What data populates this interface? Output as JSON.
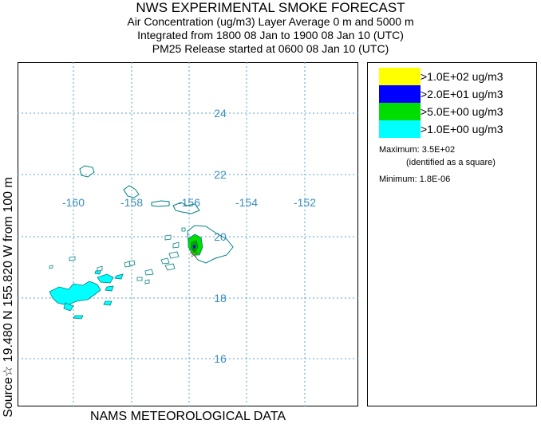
{
  "titles": {
    "line1": "NWS EXPERIMENTAL SMOKE FORECAST",
    "line2": "Air Concentration (ug/m3) Layer Average    0 m and  5000 m",
    "line3": "Integrated from 1800 08 Jan to 1900 08 Jan 10 (UTC)",
    "line4": "PM25 Release started at 0600 08 Jan 10 (UTC)"
  },
  "legend": {
    "items": [
      {
        "label": ">1.0E+02 ug/m3",
        "color": "#ffff00"
      },
      {
        "label": ">2.0E+01 ug/m3",
        "color": "#0000ff"
      },
      {
        "label": ">5.0E+00 ug/m3",
        "color": "#00dd00"
      },
      {
        "label": ">1.0E+00 ug/m3",
        "color": "#00ffff"
      }
    ],
    "maximum": "Maximum: 3.5E+02",
    "maximum_note": "(identified as a square)",
    "minimum": "Minimum: 1.8E-06"
  },
  "side_label": "Source☆ 19.480 N 155.820 W      from  100 m",
  "bottom_label": "NAMS METEOROLOGICAL DATA",
  "map": {
    "longitude_labels": [
      "-160",
      "-158",
      "-156",
      "-154",
      "-152"
    ],
    "latitude_labels": [
      "24",
      "22",
      "20",
      "18",
      "16"
    ],
    "grid_color": "#5aa0d0",
    "source_marker": "star-icon"
  }
}
